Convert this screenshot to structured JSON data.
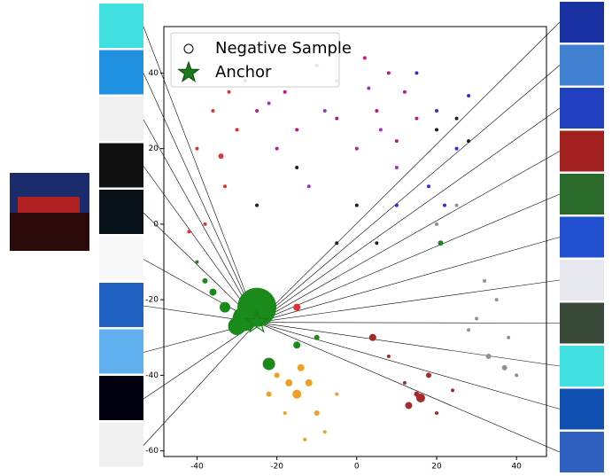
{
  "chart_data": {
    "type": "scatter",
    "xlim": [
      -48.3,
      47.5
    ],
    "ylim": [
      -61.5,
      52.3
    ],
    "xticks": [
      -40,
      -20,
      0,
      20,
      40
    ],
    "yticks": [
      -60,
      -40,
      -20,
      0,
      20,
      40
    ],
    "legend": "upper left",
    "series": [
      {
        "name": "Negative Sample",
        "marker": "circle-open",
        "color": "#000000"
      },
      {
        "name": "Anchor",
        "marker": "star",
        "color": "#1a7a1a",
        "x": [
          -25
        ],
        "y": [
          -26
        ]
      }
    ],
    "clusters": [
      {
        "color": "#c71585",
        "x": [
          -25,
          -18,
          -10,
          -5,
          2,
          8,
          -15,
          -5,
          5,
          12,
          -20,
          0,
          10,
          15,
          -28
        ],
        "y": [
          30,
          35,
          42,
          38,
          44,
          40,
          25,
          28,
          30,
          35,
          20,
          20,
          22,
          28,
          38
        ],
        "sizes": [
          2,
          2,
          2,
          2,
          2,
          2,
          2,
          2,
          2,
          2,
          2,
          2,
          2,
          2,
          2
        ]
      },
      {
        "color": "#9932cc",
        "x": [
          -22,
          -8,
          3,
          10,
          -12,
          6
        ],
        "y": [
          32,
          30,
          36,
          15,
          10,
          25
        ],
        "sizes": [
          2,
          2,
          2,
          2,
          2,
          2
        ]
      },
      {
        "color": "#e03030",
        "x": [
          -40,
          -36,
          -33,
          -38,
          -42,
          -30,
          -34,
          -32,
          -15
        ],
        "y": [
          20,
          30,
          10,
          0,
          -2,
          25,
          18,
          35,
          -22
        ],
        "sizes": [
          2,
          2,
          2,
          2,
          2,
          2,
          3,
          2,
          4
        ]
      },
      {
        "color": "#3030d0",
        "x": [
          15,
          20,
          25,
          18,
          10,
          28,
          22
        ],
        "y": [
          40,
          30,
          20,
          10,
          5,
          34,
          5
        ],
        "sizes": [
          2,
          2,
          2,
          2,
          2,
          2,
          2
        ]
      },
      {
        "color": "#909090",
        "x": [
          30,
          35,
          38,
          33,
          40,
          28,
          37,
          25,
          20,
          32
        ],
        "y": [
          -25,
          -20,
          -30,
          -35,
          -40,
          -28,
          -38,
          5,
          0,
          -15
        ],
        "sizes": [
          2,
          2,
          2,
          3,
          2,
          2,
          3,
          2,
          2,
          2
        ]
      },
      {
        "color": "#202020",
        "x": [
          -25,
          -15,
          0,
          20,
          28,
          -5,
          5,
          25
        ],
        "y": [
          5,
          15,
          5,
          25,
          22,
          -5,
          -5,
          28
        ],
        "sizes": [
          2,
          2,
          2,
          2,
          2,
          2,
          2,
          2
        ]
      },
      {
        "color": "#a52a2a",
        "x": [
          15,
          12,
          18,
          20,
          13,
          8,
          4,
          16,
          24
        ],
        "y": [
          -45,
          -42,
          -40,
          -50,
          -48,
          -35,
          -30,
          -46,
          -44
        ],
        "sizes": [
          3,
          2,
          3,
          2,
          4,
          2,
          4,
          5,
          2
        ]
      },
      {
        "color": "#f0a020",
        "x": [
          -20,
          -15,
          -12,
          -18,
          -10,
          -5,
          -14,
          -8,
          -13,
          -22,
          -17
        ],
        "y": [
          -40,
          -45,
          -42,
          -50,
          -50,
          -45,
          -38,
          -55,
          -57,
          -45,
          -42
        ],
        "sizes": [
          3,
          5,
          4,
          2,
          3,
          2,
          4,
          2,
          2,
          3,
          4
        ]
      },
      {
        "color": "#1a8a1a",
        "x": [
          -25,
          -28,
          -30,
          -33,
          -36,
          -38,
          -22,
          -15,
          -10,
          21,
          -40
        ],
        "y": [
          -22,
          -25,
          -27,
          -22,
          -18,
          -15,
          -37,
          -32,
          -30,
          -5,
          -10
        ],
        "sizes": [
          22,
          14,
          10,
          6,
          4,
          3,
          7,
          4,
          3,
          3,
          2
        ]
      }
    ]
  }
}
